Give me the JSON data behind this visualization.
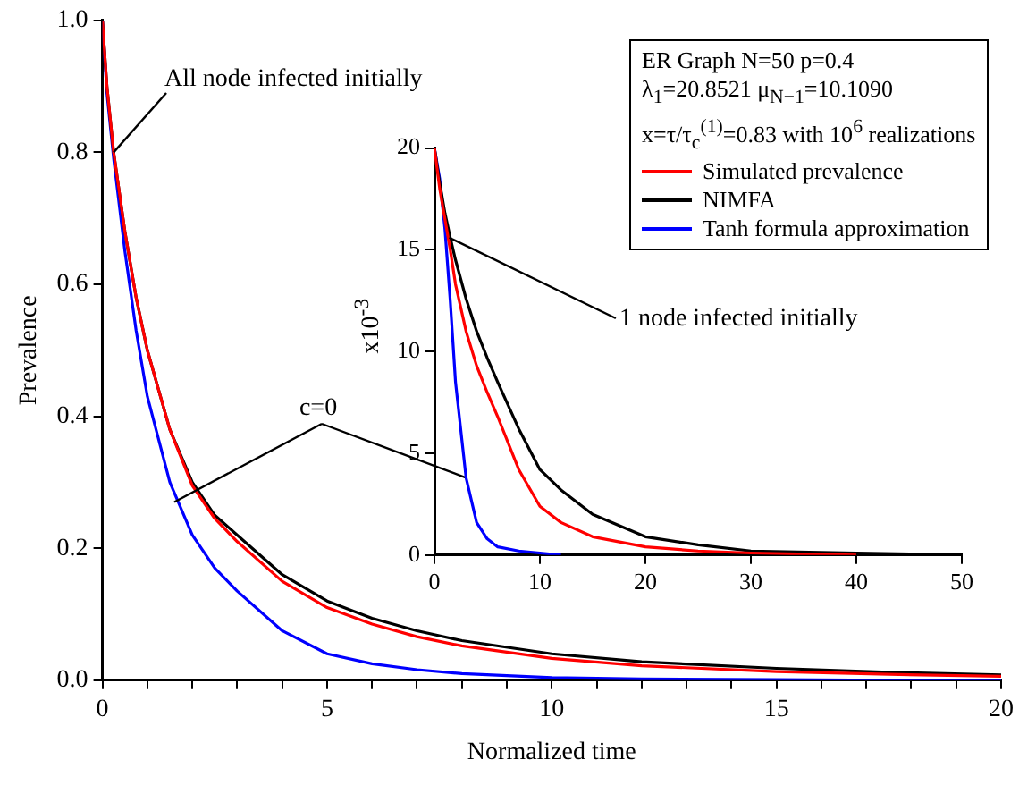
{
  "chart_data": [
    {
      "type": "line",
      "xlabel": "Normalized time",
      "ylabel": "Prevalence",
      "xlim": [
        0,
        20
      ],
      "ylim": [
        0,
        1
      ],
      "xticks": [
        0,
        {
          "value": 1,
          "label": null
        },
        {
          "value": 2,
          "label": null
        },
        {
          "value": 3,
          "label": null
        },
        {
          "value": 4,
          "label": null
        },
        5,
        {
          "value": 6,
          "label": null
        },
        {
          "value": 7,
          "label": null
        },
        {
          "value": 8,
          "label": null
        },
        {
          "value": 9,
          "label": null
        },
        10,
        {
          "value": 11,
          "label": null
        },
        {
          "value": 12,
          "label": null
        },
        {
          "value": 13,
          "label": null
        },
        {
          "value": 14,
          "label": null
        },
        15,
        {
          "value": 16,
          "label": null
        },
        {
          "value": 17,
          "label": null
        },
        {
          "value": 18,
          "label": null
        },
        {
          "value": 19,
          "label": null
        },
        20
      ],
      "yticks": [
        {
          "value": 0,
          "label": "0.0"
        },
        0.2,
        0.4,
        0.6,
        0.8,
        {
          "value": 1,
          "label": "1.0"
        }
      ],
      "grid": false,
      "legend": "top right",
      "marker": "none",
      "line_style": "solid",
      "x": [
        0,
        0.1,
        0.25,
        0.5,
        0.75,
        1,
        1.5,
        2,
        2.5,
        3,
        4,
        5,
        6,
        7,
        8,
        10,
        12,
        15,
        17.5,
        20
      ],
      "series": [
        {
          "name": "Simulated prevalence",
          "color": "#ff0000",
          "values": [
            1.0,
            0.9,
            0.8,
            0.68,
            0.58,
            0.5,
            0.38,
            0.295,
            0.245,
            0.21,
            0.15,
            0.11,
            0.085,
            0.066,
            0.052,
            0.033,
            0.022,
            0.013,
            0.009,
            0.006
          ]
        },
        {
          "name": "NIMFA",
          "color": "#000000",
          "values": [
            1.0,
            0.9,
            0.8,
            0.68,
            0.58,
            0.5,
            0.38,
            0.3,
            0.25,
            0.22,
            0.16,
            0.12,
            0.094,
            0.075,
            0.06,
            0.04,
            0.028,
            0.018,
            0.012,
            0.008
          ]
        },
        {
          "name": "Tanh formula approximation",
          "color": "#0000ff",
          "values": [
            1.0,
            0.89,
            0.79,
            0.65,
            0.53,
            0.43,
            0.3,
            0.22,
            0.17,
            0.135,
            0.075,
            0.04,
            0.025,
            0.016,
            0.01,
            0.004,
            0.002,
            0.001,
            0,
            0
          ]
        }
      ],
      "annotations": [
        "ER Graph N=50 p=0.4",
        "λ$_{1}$=20.8521 μ$_{N−1}$=10.1090",
        "x=τ/τ$_{c}$$^{(1)}$=0.83 with 10$^{6}$ realizations",
        {
          "text": "All node infected initially",
          "x": 0.25,
          "y": 0.8
        },
        {
          "text": "c=0",
          "x": 1.6,
          "y": 0.27
        }
      ]
    },
    {
      "type": "line",
      "ylabel": "x10$^{-3}$",
      "xlim": [
        0,
        50
      ],
      "ylim": [
        0,
        20
      ],
      "xticks": [
        0,
        10,
        20,
        30,
        40,
        50
      ],
      "yticks": [
        0,
        5,
        10,
        15,
        20
      ],
      "grid": false,
      "marker": "none",
      "line_style": "solid",
      "x": [
        0,
        0.5,
        1,
        1.5,
        2,
        3,
        4,
        5,
        6,
        8,
        10,
        12,
        15,
        20,
        25,
        30,
        40,
        50
      ],
      "series": [
        {
          "color": "#ff0000",
          "values": [
            20,
            18,
            16.5,
            15,
            13.3,
            11,
            9.3,
            8.0,
            6.8,
            4.2,
            2.4,
            1.6,
            0.9,
            0.4,
            0.2,
            0.1,
            0,
            null
          ]
        },
        {
          "color": "#000000",
          "values": [
            20,
            18.3,
            16.8,
            15.6,
            14.5,
            12.6,
            11,
            9.7,
            8.5,
            6.2,
            4.2,
            3.2,
            2.0,
            0.9,
            0.5,
            0.2,
            0.1,
            0
          ]
        },
        {
          "color": "#0000ff",
          "values": [
            20,
            18.5,
            16,
            12.5,
            8.5,
            3.8,
            1.6,
            0.8,
            0.4,
            0.2,
            0.1,
            0,
            null,
            null,
            null,
            null,
            null,
            null
          ]
        }
      ],
      "annotations": [
        {
          "text": "1 node infected initially",
          "x": 1.4,
          "y": 15.6
        }
      ]
    }
  ]
}
